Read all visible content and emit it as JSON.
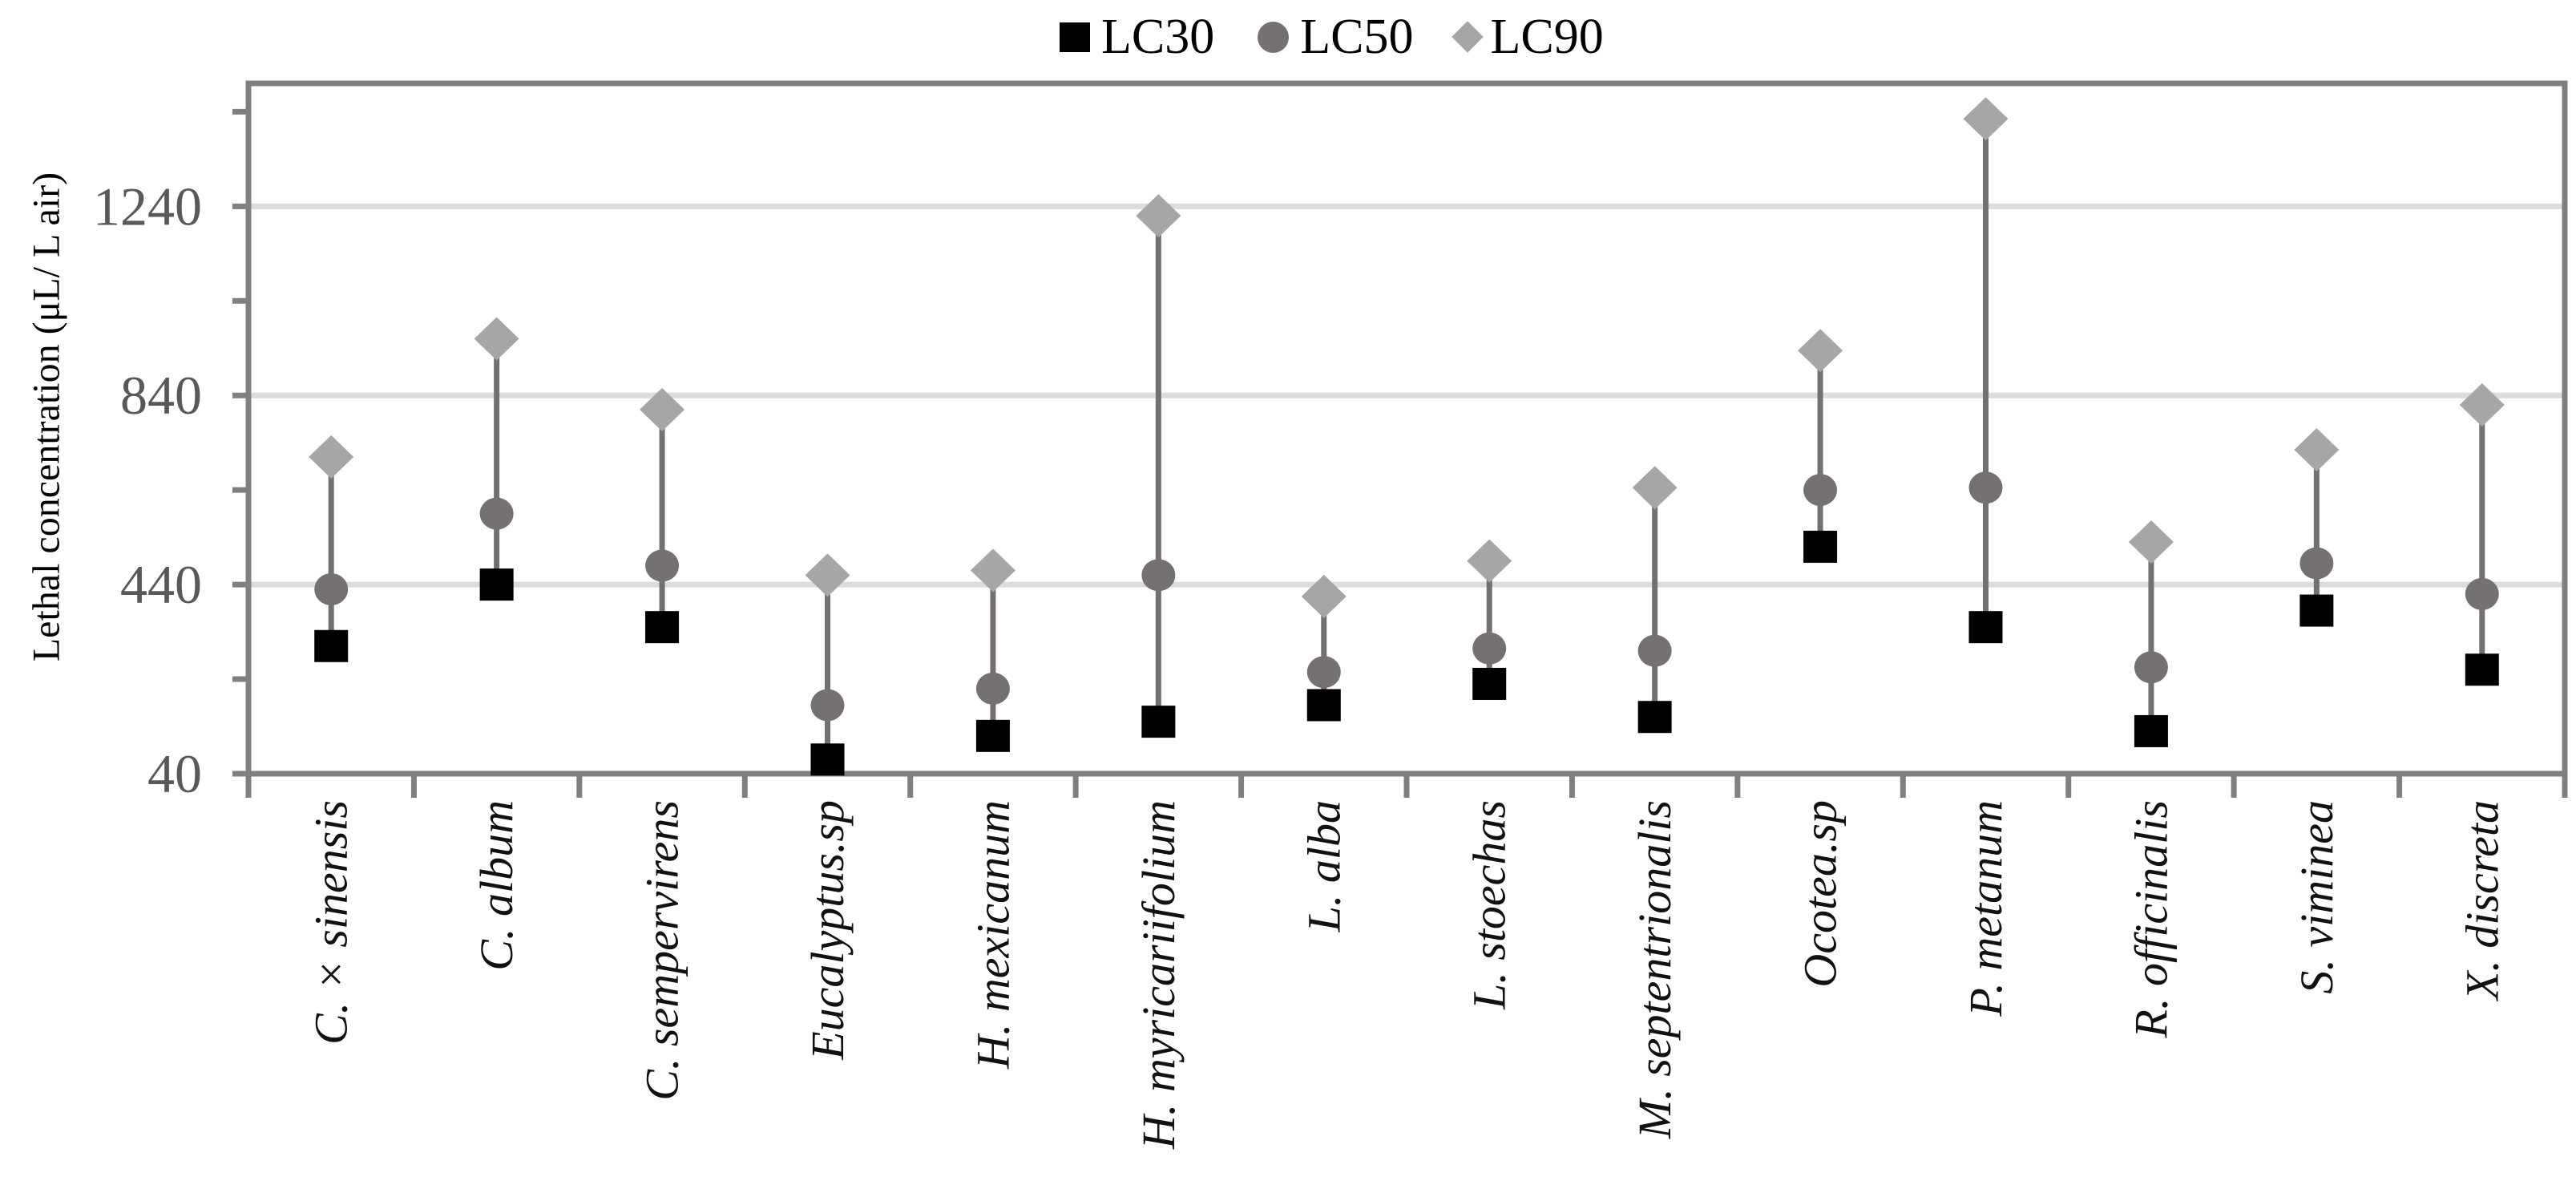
{
  "figure": {
    "background": "#ffffff"
  },
  "legend": {
    "position": "top-center",
    "items": [
      {
        "label": "LC30",
        "marker": "square",
        "color": "#000000"
      },
      {
        "label": "LC50",
        "marker": "circle",
        "color": "#767171"
      },
      {
        "label": "LC90",
        "marker": "diamond",
        "color": "#a6a6a6"
      }
    ]
  },
  "chart_data": {
    "type": "scatter",
    "variant": "categorical dot-range plot: three lethal-concentration markers per species joined by a vertical connector",
    "title": "",
    "xlabel": "",
    "ylabel": "Lethal concentration (μL/ L air)",
    "categories": [
      "C. × sinensis",
      "C. album",
      "C. sempervirens",
      "Eucalyptus.sp",
      "H. mexicanum",
      "H. myricariifolium",
      "L. alba",
      "L. stoechas",
      "M. septentrionalis",
      "Ocotea.sp",
      "P. metanum",
      "R. officinalis",
      "S. viminea",
      "X. discreta"
    ],
    "series": [
      {
        "name": "LC30",
        "marker": "square",
        "color": "#000000",
        "values": [
          310,
          440,
          350,
          70,
          120,
          150,
          185,
          230,
          160,
          520,
          350,
          130,
          385,
          260
        ]
      },
      {
        "name": "LC50",
        "marker": "circle",
        "color": "#767171",
        "values": [
          430,
          590,
          480,
          185,
          220,
          460,
          255,
          305,
          300,
          640,
          645,
          265,
          485,
          420
        ]
      },
      {
        "name": "LC90",
        "marker": "diamond",
        "color": "#a6a6a6",
        "values": [
          710,
          960,
          810,
          460,
          470,
          1220,
          415,
          490,
          645,
          935,
          1425,
          530,
          725,
          820
        ]
      }
    ],
    "y_axis": {
      "min": 40,
      "max": 1500,
      "major_ticks": [
        40,
        440,
        840,
        1240
      ],
      "tick_labels": [
        "40",
        "440",
        "840",
        "1240"
      ],
      "minor_tick_step": 200,
      "gridlines": [
        440,
        840,
        1240
      ]
    },
    "x_axis": {
      "tick_marks": "at category boundaries",
      "label_rotation_deg": 90,
      "label_style": "italic"
    },
    "grid": true,
    "legend_position": "top",
    "colors": {
      "gridline": "#dcdcdc",
      "axis": "#808080",
      "connector": "#757070",
      "tick_label": "#595959",
      "category_label": "#111111"
    },
    "units": "μL/L air"
  }
}
